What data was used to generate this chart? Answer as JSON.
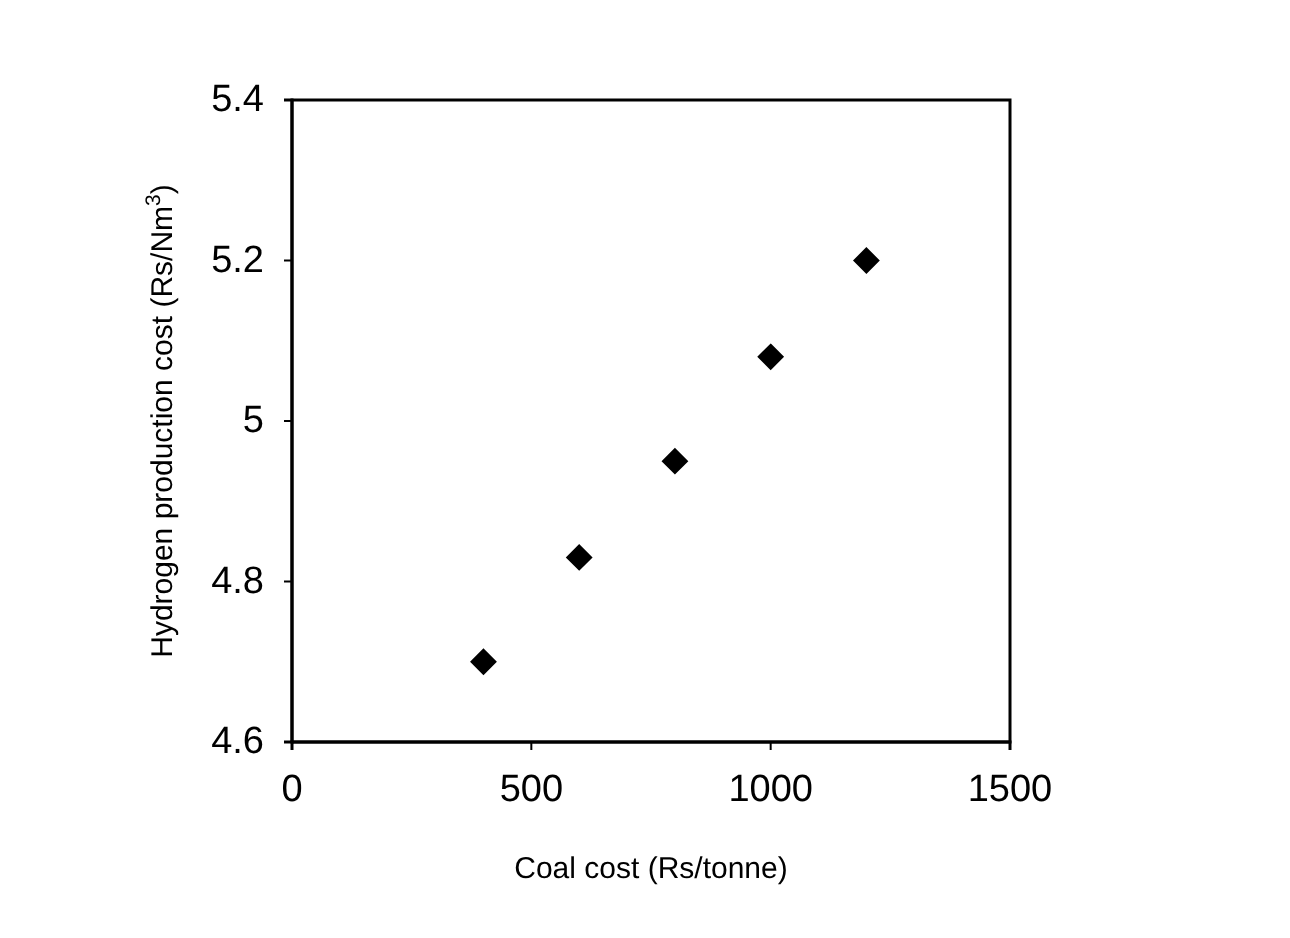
{
  "chart_data": {
    "type": "scatter",
    "xlabel": "Coal cost (Rs/tonne)",
    "ylabel": "Hydrogen production cost (Rs/Nm$^{3}$)",
    "x": [
      400,
      600,
      800,
      1000,
      1200
    ],
    "series": [
      {
        "color": "#000000",
        "values": [
          4.7,
          4.83,
          4.95,
          5.08,
          5.2
        ]
      }
    ],
    "xlim": [
      0,
      1500
    ],
    "xticks": [
      0,
      500,
      1000,
      1500
    ],
    "ylim": [
      4.6,
      5.4
    ],
    "yticks": [
      {
        "value": 4.6,
        "label": "4.6"
      },
      {
        "value": 4.8,
        "label": "4.8"
      },
      {
        "value": 5,
        "label": "5"
      },
      {
        "value": 5.2,
        "label": "5.2"
      },
      {
        "value": 5.4,
        "label": "5.4"
      }
    ],
    "marker": "diamond",
    "grid": false
  }
}
